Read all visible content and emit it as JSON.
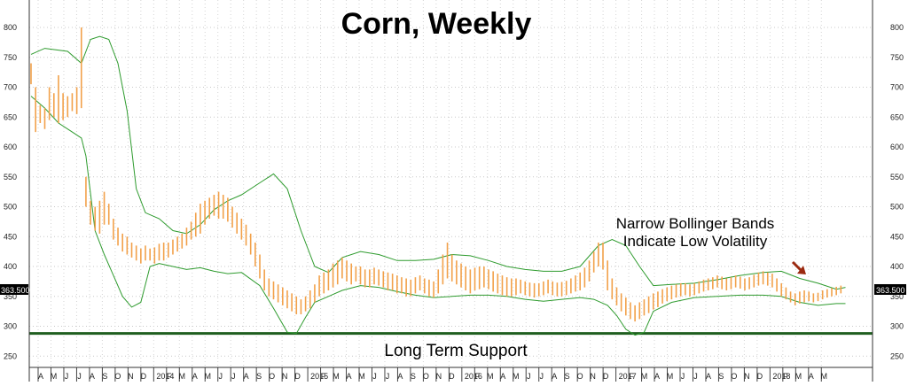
{
  "chart_data": {
    "type": "ohlc",
    "title": "Corn, Weekly",
    "ylim": [
      230,
      810
    ],
    "y_ticks": [
      250,
      300,
      350,
      400,
      450,
      500,
      550,
      600,
      650,
      700,
      750,
      800
    ],
    "price_label": "363.500",
    "x_tick_labels": [
      "A",
      "M",
      "J",
      "J",
      "A",
      "S",
      "O",
      "N",
      "D",
      "2014",
      "F",
      "M",
      "A",
      "M",
      "J",
      "J",
      "A",
      "S",
      "O",
      "N",
      "D",
      "2015",
      "F",
      "M",
      "A",
      "M",
      "J",
      "J",
      "A",
      "S",
      "O",
      "N",
      "D",
      "2016",
      "F",
      "M",
      "A",
      "M",
      "J",
      "J",
      "A",
      "S",
      "O",
      "N",
      "D",
      "2017",
      "F",
      "M",
      "A",
      "M",
      "J",
      "J",
      "A",
      "S",
      "O",
      "N",
      "D",
      "2018",
      "F",
      "M",
      "A",
      "M"
    ],
    "price_bars": [
      {
        "week": 0,
        "low": 705,
        "high": 740
      },
      {
        "week": 1,
        "low": 625,
        "high": 700
      },
      {
        "week": 2,
        "low": 640,
        "high": 670
      },
      {
        "week": 3,
        "low": 630,
        "high": 665
      },
      {
        "week": 4,
        "low": 645,
        "high": 700
      },
      {
        "week": 5,
        "low": 650,
        "high": 690
      },
      {
        "week": 6,
        "low": 640,
        "high": 720
      },
      {
        "week": 7,
        "low": 645,
        "high": 690
      },
      {
        "week": 8,
        "low": 650,
        "high": 685
      },
      {
        "week": 9,
        "low": 660,
        "high": 690
      },
      {
        "week": 10,
        "low": 655,
        "high": 700
      },
      {
        "week": 11,
        "low": 665,
        "high": 800
      },
      {
        "week": 12,
        "low": 500,
        "high": 550
      },
      {
        "week": 13,
        "low": 470,
        "high": 510
      },
      {
        "week": 14,
        "low": 460,
        "high": 500
      },
      {
        "week": 15,
        "low": 455,
        "high": 510
      },
      {
        "week": 16,
        "low": 470,
        "high": 525
      },
      {
        "week": 17,
        "low": 470,
        "high": 505
      },
      {
        "week": 18,
        "low": 445,
        "high": 480
      },
      {
        "week": 19,
        "low": 435,
        "high": 465
      },
      {
        "week": 20,
        "low": 425,
        "high": 455
      },
      {
        "week": 21,
        "low": 420,
        "high": 450
      },
      {
        "week": 22,
        "low": 415,
        "high": 440
      },
      {
        "week": 23,
        "low": 410,
        "high": 435
      },
      {
        "week": 24,
        "low": 405,
        "high": 430
      },
      {
        "week": 25,
        "low": 410,
        "high": 435
      },
      {
        "week": 26,
        "low": 410,
        "high": 430
      },
      {
        "week": 27,
        "low": 405,
        "high": 432
      },
      {
        "week": 28,
        "low": 410,
        "high": 438
      },
      {
        "week": 29,
        "low": 410,
        "high": 440
      },
      {
        "week": 30,
        "low": 415,
        "high": 440
      },
      {
        "week": 31,
        "low": 420,
        "high": 445
      },
      {
        "week": 32,
        "low": 425,
        "high": 450
      },
      {
        "week": 33,
        "low": 430,
        "high": 455
      },
      {
        "week": 34,
        "low": 435,
        "high": 465
      },
      {
        "week": 35,
        "low": 445,
        "high": 475
      },
      {
        "week": 36,
        "low": 450,
        "high": 490
      },
      {
        "week": 37,
        "low": 455,
        "high": 505
      },
      {
        "week": 38,
        "low": 470,
        "high": 510
      },
      {
        "week": 39,
        "low": 480,
        "high": 515
      },
      {
        "week": 40,
        "low": 485,
        "high": 520
      },
      {
        "week": 41,
        "low": 480,
        "high": 525
      },
      {
        "week": 42,
        "low": 480,
        "high": 520
      },
      {
        "week": 43,
        "low": 475,
        "high": 515
      },
      {
        "week": 44,
        "low": 465,
        "high": 500
      },
      {
        "week": 45,
        "low": 455,
        "high": 490
      },
      {
        "week": 46,
        "low": 445,
        "high": 480
      },
      {
        "week": 47,
        "low": 435,
        "high": 470
      },
      {
        "week": 48,
        "low": 420,
        "high": 455
      },
      {
        "week": 49,
        "low": 400,
        "high": 440
      },
      {
        "week": 50,
        "low": 380,
        "high": 420
      },
      {
        "week": 51,
        "low": 360,
        "high": 395
      },
      {
        "week": 52,
        "low": 350,
        "high": 380
      },
      {
        "week": 53,
        "low": 345,
        "high": 375
      },
      {
        "week": 54,
        "low": 340,
        "high": 370
      },
      {
        "week": 55,
        "low": 335,
        "high": 365
      },
      {
        "week": 56,
        "low": 330,
        "high": 360
      },
      {
        "week": 57,
        "low": 325,
        "high": 355
      },
      {
        "week": 58,
        "low": 320,
        "high": 350
      },
      {
        "week": 59,
        "low": 320,
        "high": 345
      },
      {
        "week": 60,
        "low": 325,
        "high": 350
      },
      {
        "week": 61,
        "low": 330,
        "high": 360
      },
      {
        "week": 62,
        "low": 340,
        "high": 370
      },
      {
        "week": 63,
        "low": 350,
        "high": 385
      },
      {
        "week": 64,
        "low": 355,
        "high": 390
      },
      {
        "week": 65,
        "low": 360,
        "high": 395
      },
      {
        "week": 66,
        "low": 365,
        "high": 405
      },
      {
        "week": 67,
        "low": 370,
        "high": 410
      },
      {
        "week": 68,
        "low": 380,
        "high": 415
      },
      {
        "week": 69,
        "low": 375,
        "high": 410
      },
      {
        "week": 70,
        "low": 370,
        "high": 405
      },
      {
        "week": 71,
        "low": 375,
        "high": 400
      },
      {
        "week": 72,
        "low": 370,
        "high": 400
      },
      {
        "week": 73,
        "low": 365,
        "high": 395
      },
      {
        "week": 74,
        "low": 365,
        "high": 395
      },
      {
        "week": 75,
        "low": 370,
        "high": 398
      },
      {
        "week": 76,
        "low": 368,
        "high": 395
      },
      {
        "week": 77,
        "low": 365,
        "high": 392
      },
      {
        "week": 78,
        "low": 360,
        "high": 390
      },
      {
        "week": 79,
        "low": 360,
        "high": 388
      },
      {
        "week": 80,
        "low": 355,
        "high": 385
      },
      {
        "week": 81,
        "low": 355,
        "high": 382
      },
      {
        "week": 82,
        "low": 350,
        "high": 380
      },
      {
        "week": 83,
        "low": 350,
        "high": 378
      },
      {
        "week": 84,
        "low": 355,
        "high": 382
      },
      {
        "week": 85,
        "low": 360,
        "high": 385
      },
      {
        "week": 86,
        "low": 355,
        "high": 380
      },
      {
        "week": 87,
        "low": 350,
        "high": 378
      },
      {
        "week": 88,
        "low": 348,
        "high": 375
      },
      {
        "week": 89,
        "low": 355,
        "high": 395
      },
      {
        "week": 90,
        "low": 370,
        "high": 420
      },
      {
        "week": 91,
        "low": 380,
        "high": 440
      },
      {
        "week": 92,
        "low": 375,
        "high": 420
      },
      {
        "week": 93,
        "low": 370,
        "high": 410
      },
      {
        "week": 94,
        "low": 365,
        "high": 405
      },
      {
        "week": 95,
        "low": 360,
        "high": 400
      },
      {
        "week": 96,
        "low": 355,
        "high": 395
      },
      {
        "week": 97,
        "low": 360,
        "high": 398
      },
      {
        "week": 98,
        "low": 362,
        "high": 400
      },
      {
        "week": 99,
        "low": 365,
        "high": 400
      },
      {
        "week": 100,
        "low": 362,
        "high": 395
      },
      {
        "week": 101,
        "low": 358,
        "high": 392
      },
      {
        "week": 102,
        "low": 355,
        "high": 388
      },
      {
        "week": 103,
        "low": 352,
        "high": 385
      },
      {
        "week": 104,
        "low": 350,
        "high": 382
      },
      {
        "week": 105,
        "low": 350,
        "high": 380
      },
      {
        "week": 106,
        "low": 352,
        "high": 380
      },
      {
        "week": 107,
        "low": 355,
        "high": 378
      },
      {
        "week": 108,
        "low": 352,
        "high": 375
      },
      {
        "week": 109,
        "low": 350,
        "high": 373
      },
      {
        "week": 110,
        "low": 348,
        "high": 372
      },
      {
        "week": 111,
        "low": 350,
        "high": 372
      },
      {
        "week": 112,
        "low": 352,
        "high": 375
      },
      {
        "week": 113,
        "low": 355,
        "high": 378
      },
      {
        "week": 114,
        "low": 352,
        "high": 375
      },
      {
        "week": 115,
        "low": 350,
        "high": 373
      },
      {
        "week": 116,
        "low": 350,
        "high": 374
      },
      {
        "week": 117,
        "low": 352,
        "high": 376
      },
      {
        "week": 118,
        "low": 355,
        "high": 380
      },
      {
        "week": 119,
        "low": 358,
        "high": 385
      },
      {
        "week": 120,
        "low": 360,
        "high": 390
      },
      {
        "week": 121,
        "low": 365,
        "high": 398
      },
      {
        "week": 122,
        "low": 375,
        "high": 410
      },
      {
        "week": 123,
        "low": 390,
        "high": 425
      },
      {
        "week": 124,
        "low": 400,
        "high": 440
      },
      {
        "week": 125,
        "low": 395,
        "high": 440
      },
      {
        "week": 126,
        "low": 360,
        "high": 410
      },
      {
        "week": 127,
        "low": 345,
        "high": 380
      },
      {
        "week": 128,
        "low": 335,
        "high": 365
      },
      {
        "week": 129,
        "low": 325,
        "high": 355
      },
      {
        "week": 130,
        "low": 318,
        "high": 348
      },
      {
        "week": 131,
        "low": 312,
        "high": 340
      },
      {
        "week": 132,
        "low": 308,
        "high": 335
      },
      {
        "week": 133,
        "low": 312,
        "high": 340
      },
      {
        "week": 134,
        "low": 318,
        "high": 345
      },
      {
        "week": 135,
        "low": 322,
        "high": 350
      },
      {
        "week": 136,
        "low": 328,
        "high": 355
      },
      {
        "week": 137,
        "low": 332,
        "high": 358
      },
      {
        "week": 138,
        "low": 338,
        "high": 362
      },
      {
        "week": 139,
        "low": 342,
        "high": 365
      },
      {
        "week": 140,
        "low": 345,
        "high": 368
      },
      {
        "week": 141,
        "low": 348,
        "high": 370
      },
      {
        "week": 142,
        "low": 350,
        "high": 372
      },
      {
        "week": 143,
        "low": 352,
        "high": 372
      },
      {
        "week": 144,
        "low": 350,
        "high": 370
      },
      {
        "week": 145,
        "low": 352,
        "high": 372
      },
      {
        "week": 146,
        "low": 355,
        "high": 375
      },
      {
        "week": 147,
        "low": 358,
        "high": 378
      },
      {
        "week": 148,
        "low": 360,
        "high": 380
      },
      {
        "week": 149,
        "low": 362,
        "high": 382
      },
      {
        "week": 150,
        "low": 365,
        "high": 385
      },
      {
        "week": 151,
        "low": 362,
        "high": 383
      },
      {
        "week": 152,
        "low": 360,
        "high": 380
      },
      {
        "week": 153,
        "low": 362,
        "high": 382
      },
      {
        "week": 154,
        "low": 365,
        "high": 385
      },
      {
        "week": 155,
        "low": 363,
        "high": 383
      },
      {
        "week": 156,
        "low": 360,
        "high": 380
      },
      {
        "week": 157,
        "low": 362,
        "high": 382
      },
      {
        "week": 158,
        "low": 365,
        "high": 386
      },
      {
        "week": 159,
        "low": 368,
        "high": 390
      },
      {
        "week": 160,
        "low": 370,
        "high": 392
      },
      {
        "week": 161,
        "low": 368,
        "high": 390
      },
      {
        "week": 162,
        "low": 365,
        "high": 388
      },
      {
        "week": 163,
        "low": 358,
        "high": 380
      },
      {
        "week": 164,
        "low": 350,
        "high": 372
      },
      {
        "week": 165,
        "low": 345,
        "high": 365
      },
      {
        "week": 166,
        "low": 340,
        "high": 358
      },
      {
        "week": 167,
        "low": 335,
        "high": 355
      },
      {
        "week": 168,
        "low": 338,
        "high": 358
      },
      {
        "week": 169,
        "low": 340,
        "high": 360
      },
      {
        "week": 170,
        "low": 342,
        "high": 358
      },
      {
        "week": 171,
        "low": 340,
        "high": 355
      },
      {
        "week": 172,
        "low": 342,
        "high": 356
      },
      {
        "week": 173,
        "low": 345,
        "high": 360
      },
      {
        "week": 174,
        "low": 348,
        "high": 362
      },
      {
        "week": 175,
        "low": 350,
        "high": 364
      },
      {
        "week": 176,
        "low": 352,
        "high": 366
      },
      {
        "week": 177,
        "low": 355,
        "high": 368
      }
    ],
    "upper_band": [
      [
        0,
        755
      ],
      [
        3,
        765
      ],
      [
        8,
        760
      ],
      [
        11,
        740
      ],
      [
        13,
        780
      ],
      [
        15,
        785
      ],
      [
        17,
        780
      ],
      [
        19,
        740
      ],
      [
        21,
        660
      ],
      [
        23,
        530
      ],
      [
        25,
        490
      ],
      [
        28,
        480
      ],
      [
        31,
        460
      ],
      [
        34,
        455
      ],
      [
        37,
        470
      ],
      [
        40,
        495
      ],
      [
        43,
        510
      ],
      [
        46,
        520
      ],
      [
        50,
        540
      ],
      [
        53,
        555
      ],
      [
        56,
        530
      ],
      [
        59,
        460
      ],
      [
        62,
        400
      ],
      [
        65,
        390
      ],
      [
        68,
        415
      ],
      [
        72,
        425
      ],
      [
        76,
        420
      ],
      [
        80,
        410
      ],
      [
        84,
        410
      ],
      [
        88,
        412
      ],
      [
        92,
        420
      ],
      [
        96,
        418
      ],
      [
        100,
        410
      ],
      [
        104,
        400
      ],
      [
        108,
        395
      ],
      [
        112,
        392
      ],
      [
        116,
        392
      ],
      [
        120,
        400
      ],
      [
        124,
        435
      ],
      [
        127,
        445
      ],
      [
        130,
        435
      ],
      [
        133,
        400
      ],
      [
        136,
        368
      ],
      [
        140,
        370
      ],
      [
        145,
        372
      ],
      [
        150,
        378
      ],
      [
        155,
        385
      ],
      [
        160,
        390
      ],
      [
        164,
        392
      ],
      [
        168,
        380
      ],
      [
        172,
        372
      ],
      [
        176,
        362
      ],
      [
        178,
        365
      ]
    ],
    "lower_band": [
      [
        0,
        685
      ],
      [
        3,
        665
      ],
      [
        6,
        640
      ],
      [
        9,
        625
      ],
      [
        11,
        615
      ],
      [
        12,
        585
      ],
      [
        14,
        460
      ],
      [
        16,
        420
      ],
      [
        18,
        385
      ],
      [
        20,
        350
      ],
      [
        22,
        332
      ],
      [
        24,
        340
      ],
      [
        26,
        400
      ],
      [
        28,
        405
      ],
      [
        31,
        400
      ],
      [
        34,
        395
      ],
      [
        37,
        398
      ],
      [
        40,
        392
      ],
      [
        43,
        388
      ],
      [
        46,
        390
      ],
      [
        50,
        368
      ],
      [
        53,
        330
      ],
      [
        56,
        290
      ],
      [
        58,
        288
      ],
      [
        60,
        315
      ],
      [
        62,
        340
      ],
      [
        65,
        350
      ],
      [
        68,
        360
      ],
      [
        72,
        368
      ],
      [
        76,
        365
      ],
      [
        80,
        358
      ],
      [
        84,
        352
      ],
      [
        88,
        348
      ],
      [
        92,
        350
      ],
      [
        96,
        352
      ],
      [
        100,
        352
      ],
      [
        104,
        350
      ],
      [
        108,
        345
      ],
      [
        112,
        342
      ],
      [
        116,
        345
      ],
      [
        120,
        348
      ],
      [
        123,
        345
      ],
      [
        126,
        335
      ],
      [
        128,
        318
      ],
      [
        130,
        295
      ],
      [
        132,
        285
      ],
      [
        134,
        290
      ],
      [
        136,
        325
      ],
      [
        140,
        340
      ],
      [
        145,
        348
      ],
      [
        150,
        350
      ],
      [
        155,
        352
      ],
      [
        160,
        352
      ],
      [
        164,
        350
      ],
      [
        168,
        340
      ],
      [
        172,
        335
      ],
      [
        176,
        338
      ],
      [
        178,
        338
      ]
    ],
    "support_level": 288,
    "annotations": {
      "bands_note_line1": "Narrow Bollinger Bands",
      "bands_note_line2": "Indicate Low Volatility",
      "support_label": "Long Term Support"
    },
    "colors": {
      "price_bars": "#f2a14a",
      "bands": "#2e9b2e",
      "support_line": "#1f5e1f",
      "price_label_bg": "#000000",
      "price_label_text": "#ffffff",
      "arrow": "#9b2a10"
    }
  }
}
